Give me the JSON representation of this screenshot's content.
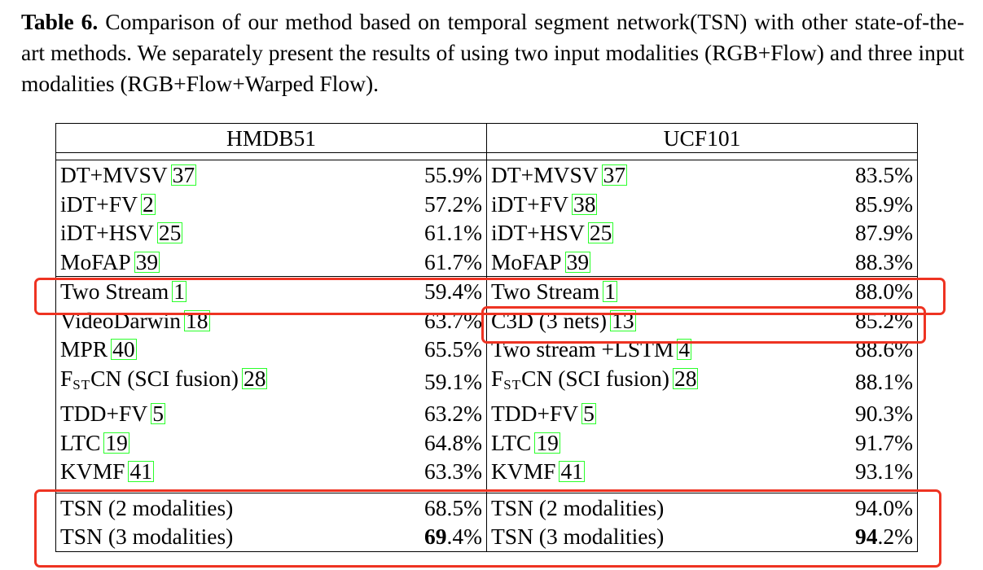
{
  "caption": {
    "label": "Table 6.",
    "text": "Comparison of our method based on temporal segment network(TSN) with other state-of-the-art methods. We separately present the results of using two input modalities (RGB+Flow) and three input modalities (RGB+Flow+Warped Flow)."
  },
  "table": {
    "headers": [
      "HMDB51",
      "UCF101"
    ],
    "groups": [
      {
        "rows": [
          {
            "h_name": "DT+MVSV",
            "h_cite": "37",
            "h_val": "55.9%",
            "u_name": "DT+MVSV",
            "u_cite": "37",
            "u_val": "83.5%"
          },
          {
            "h_name": "iDT+FV",
            "h_cite": "2",
            "h_val": "57.2%",
            "u_name": "iDT+FV",
            "u_cite": "38",
            "u_val": "85.9%"
          },
          {
            "h_name": "iDT+HSV",
            "h_cite": "25",
            "h_val": "61.1%",
            "u_name": "iDT+HSV",
            "u_cite": "25",
            "u_val": "87.9%"
          },
          {
            "h_name": "MoFAP",
            "h_cite": "39",
            "h_val": "61.7%",
            "u_name": "MoFAP",
            "u_cite": "39",
            "u_val": "88.3%"
          }
        ]
      },
      {
        "rows": [
          {
            "h_name": "Two Stream",
            "h_cite": "1",
            "h_val": "59.4%",
            "u_name": "Two Stream",
            "u_cite": "1",
            "u_val": "88.0%"
          },
          {
            "h_name": "VideoDarwin",
            "h_cite": "18",
            "h_val": "63.7%",
            "u_name": "C3D (3 nets)",
            "u_cite": "13",
            "u_val": "85.2%"
          },
          {
            "h_name": "MPR",
            "h_cite": "40",
            "h_val": "65.5%",
            "u_name": "Two stream +LSTM",
            "u_cite": "4",
            "u_val": "88.6%"
          },
          {
            "h_name_main": "F",
            "h_name_sub": "ST",
            "h_name_rest": "CN (SCI fusion)",
            "h_cite": "28",
            "h_val": "59.1%",
            "u_name_main": "F",
            "u_name_sub": "ST",
            "u_name_rest": "CN (SCI fusion)",
            "u_cite": "28",
            "u_val": "88.1%"
          },
          {
            "h_name": "TDD+FV",
            "h_cite": "5",
            "h_val": "63.2%",
            "u_name": "TDD+FV",
            "u_cite": "5",
            "u_val": "90.3%"
          },
          {
            "h_name": "LTC",
            "h_cite": "19",
            "h_val": "64.8%",
            "u_name": "LTC",
            "u_cite": "19",
            "u_val": "91.7%"
          },
          {
            "h_name": "KVMF",
            "h_cite": "41",
            "h_val": "63.3%",
            "u_name": "KVMF",
            "u_cite": "41",
            "u_val": "93.1%"
          }
        ]
      },
      {
        "rows": [
          {
            "h_name": "TSN (2 modalities)",
            "h_val": "68.5%",
            "u_name": "TSN (2 modalities)",
            "u_val": "94.0%"
          },
          {
            "h_name": "TSN (3 modalities)",
            "h_val_bold": "69",
            "h_val_rest": ".4%",
            "u_name": "TSN (3 modalities)",
            "u_val_bold": "94",
            "u_val_rest": ".2%"
          }
        ]
      }
    ]
  },
  "highlight_color": "#ee3322",
  "citation_box_color": "#2bff2b"
}
